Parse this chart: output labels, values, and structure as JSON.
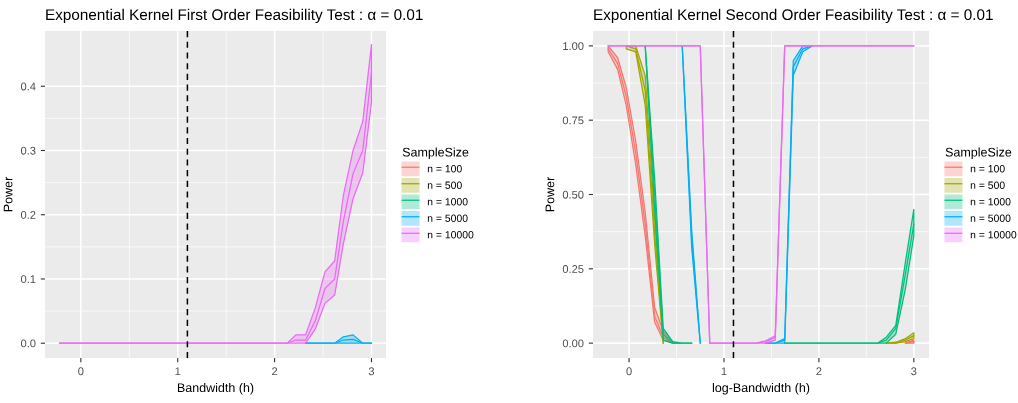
{
  "chart_data": [
    {
      "type": "line",
      "title": "Exponential Kernel First Order Feasibility Test : α = 0.01",
      "xlabel": "Bandwidth (h)",
      "ylabel": "Power",
      "legend_title": "SampleSize",
      "legend": "right",
      "grid": true,
      "x": [
        -0.22,
        -0.12,
        -0.03,
        0.07,
        0.17,
        0.27,
        0.36,
        0.46,
        0.56,
        0.66,
        0.75,
        0.85,
        0.95,
        1.05,
        1.15,
        1.24,
        1.34,
        1.44,
        1.54,
        1.64,
        1.73,
        1.83,
        1.93,
        2.03,
        2.13,
        2.22,
        2.32,
        2.42,
        2.52,
        2.62,
        2.71,
        2.81,
        2.91,
        3.0
      ],
      "xlim": [
        -0.37,
        3.15
      ],
      "xticks": [
        0,
        1,
        2,
        3
      ],
      "ylim": [
        -0.023,
        0.486
      ],
      "yticks": [
        {
          "value": 0,
          "label": "0.0"
        },
        0.1,
        0.2,
        0.3,
        0.4
      ],
      "ref_lines": [
        {
          "axis": "x",
          "value": 1.1,
          "color": "#000000",
          "line_style": "dashed"
        }
      ],
      "series": [
        {
          "name": "n = 100",
          "color": "#f8766d",
          "values": [
            null,
            null,
            null,
            null,
            null,
            null,
            null,
            null,
            null,
            null,
            null,
            null,
            null,
            null,
            null,
            null,
            null,
            null,
            null,
            null,
            null,
            null,
            null,
            null,
            null,
            null,
            null,
            null,
            null,
            null,
            null,
            null,
            null,
            null
          ]
        },
        {
          "name": "n = 500",
          "color": "#a3a500",
          "values": [
            null,
            null,
            null,
            null,
            null,
            null,
            null,
            null,
            null,
            null,
            null,
            null,
            null,
            null,
            null,
            null,
            null,
            null,
            null,
            null,
            null,
            null,
            null,
            null,
            null,
            null,
            null,
            null,
            null,
            null,
            null,
            null,
            null,
            null
          ]
        },
        {
          "name": "n = 1000",
          "color": "#00bf7d",
          "values": [
            null,
            null,
            null,
            null,
            null,
            null,
            null,
            null,
            null,
            null,
            null,
            null,
            null,
            null,
            null,
            null,
            null,
            null,
            null,
            null,
            null,
            null,
            null,
            null,
            null,
            null,
            null,
            null,
            null,
            null,
            null,
            null,
            null,
            null
          ]
        },
        {
          "name": "n = 5000",
          "color": "#00b0f6",
          "values": [
            null,
            null,
            null,
            null,
            null,
            null,
            null,
            null,
            null,
            null,
            null,
            null,
            null,
            null,
            null,
            null,
            null,
            null,
            null,
            null,
            null,
            null,
            null,
            null,
            null,
            null,
            0,
            0,
            0,
            0,
            0.005,
            0.006,
            0,
            0
          ],
          "lower": [
            null,
            null,
            null,
            null,
            null,
            null,
            null,
            null,
            null,
            null,
            null,
            null,
            null,
            null,
            null,
            null,
            null,
            null,
            null,
            null,
            null,
            null,
            null,
            null,
            null,
            null,
            0,
            0,
            0,
            0,
            0,
            0,
            0,
            0
          ],
          "upper": [
            null,
            null,
            null,
            null,
            null,
            null,
            null,
            null,
            null,
            null,
            null,
            null,
            null,
            null,
            null,
            null,
            null,
            null,
            null,
            null,
            null,
            null,
            null,
            null,
            null,
            null,
            0,
            0,
            0,
            0,
            0.01,
            0.013,
            0,
            0
          ]
        },
        {
          "name": "n = 10000",
          "color": "#e76bf3",
          "values": [
            0,
            0,
            0,
            0,
            0,
            0,
            0,
            0,
            0,
            0,
            0,
            0,
            0,
            0,
            0,
            0,
            0,
            0,
            0,
            0,
            0,
            0,
            0,
            0,
            0,
            0.005,
            0.005,
            0.035,
            0.085,
            0.1,
            0.19,
            0.264,
            0.3,
            0.42
          ],
          "lower": [
            0,
            0,
            0,
            0,
            0,
            0,
            0,
            0,
            0,
            0,
            0,
            0,
            0,
            0,
            0,
            0,
            0,
            0,
            0,
            0,
            0,
            0,
            0,
            0,
            0,
            0,
            0,
            0.022,
            0.062,
            0.075,
            0.155,
            0.225,
            0.265,
            0.375
          ],
          "upper": [
            0,
            0,
            0,
            0,
            0,
            0,
            0,
            0,
            0,
            0,
            0,
            0,
            0,
            0,
            0,
            0,
            0,
            0,
            0,
            0,
            0,
            0,
            0,
            0,
            0,
            0.013,
            0.013,
            0.055,
            0.111,
            0.128,
            0.23,
            0.3,
            0.345,
            0.465
          ]
        }
      ]
    },
    {
      "type": "line",
      "title": "Exponential Kernel Second Order Feasibility Test : α = 0.01",
      "xlabel": "log-Bandwidth (h)",
      "ylabel": "Power",
      "legend_title": "SampleSize",
      "legend": "right",
      "grid": true,
      "x": [
        -0.22,
        -0.12,
        -0.03,
        0.07,
        0.17,
        0.27,
        0.36,
        0.46,
        0.56,
        0.66,
        0.75,
        0.85,
        0.95,
        1.05,
        1.15,
        1.24,
        1.34,
        1.44,
        1.54,
        1.64,
        1.73,
        1.83,
        1.93,
        2.03,
        2.13,
        2.22,
        2.32,
        2.42,
        2.52,
        2.62,
        2.71,
        2.81,
        2.91,
        3.0
      ],
      "xlim": [
        -0.38,
        3.16
      ],
      "xticks": [
        0,
        1,
        2,
        3
      ],
      "ylim": [
        -0.05,
        1.05
      ],
      "yticks": [
        {
          "value": 0,
          "label": "0.00"
        },
        {
          "value": 0.25,
          "label": "0.25"
        },
        {
          "value": 0.5,
          "label": "0.50"
        },
        {
          "value": 0.75,
          "label": "0.75"
        },
        {
          "value": 1,
          "label": "1.00"
        }
      ],
      "ref_lines": [
        {
          "axis": "x",
          "value": 1.1,
          "color": "#000000",
          "line_style": "dashed"
        }
      ],
      "series": [
        {
          "name": "n = 100",
          "color": "#f8766d",
          "values": [
            0.99,
            0.94,
            0.83,
            0.64,
            0.4,
            0.09,
            0.02,
            0,
            null,
            null,
            null,
            null,
            null,
            null,
            null,
            null,
            null,
            null,
            null,
            null,
            null,
            null,
            null,
            null,
            null,
            null,
            null,
            null,
            null,
            null,
            null,
            null,
            0,
            0.005
          ],
          "lower": [
            0.98,
            0.92,
            0.8,
            0.6,
            0.36,
            0.07,
            0.01,
            0,
            null,
            null,
            null,
            null,
            null,
            null,
            null,
            null,
            null,
            null,
            null,
            null,
            null,
            null,
            null,
            null,
            null,
            null,
            null,
            null,
            null,
            null,
            null,
            null,
            0,
            0
          ],
          "upper": [
            1,
            0.96,
            0.86,
            0.68,
            0.44,
            0.12,
            0.04,
            0.005,
            null,
            null,
            null,
            null,
            null,
            null,
            null,
            null,
            null,
            null,
            null,
            null,
            null,
            null,
            null,
            null,
            null,
            null,
            null,
            null,
            null,
            null,
            null,
            null,
            0,
            0.01
          ]
        },
        {
          "name": "n = 500",
          "color": "#a3a500",
          "values": [
            null,
            null,
            1,
            0.99,
            0.85,
            0.37,
            0,
            null,
            null,
            null,
            null,
            null,
            null,
            null,
            null,
            null,
            null,
            null,
            null,
            null,
            null,
            null,
            null,
            null,
            null,
            null,
            null,
            null,
            null,
            null,
            0,
            0,
            0.01,
            0.025
          ],
          "lower": [
            null,
            null,
            0.99,
            0.98,
            0.8,
            0.33,
            0,
            null,
            null,
            null,
            null,
            null,
            null,
            null,
            null,
            null,
            null,
            null,
            null,
            null,
            null,
            null,
            null,
            null,
            null,
            null,
            null,
            null,
            null,
            null,
            0,
            0,
            0.005,
            0.015
          ],
          "upper": [
            null,
            null,
            1,
            1,
            0.9,
            0.42,
            0.01,
            null,
            null,
            null,
            null,
            null,
            null,
            null,
            null,
            null,
            null,
            null,
            null,
            null,
            null,
            null,
            null,
            null,
            null,
            null,
            null,
            null,
            null,
            null,
            0,
            0.003,
            0.015,
            0.035
          ]
        },
        {
          "name": "n = 1000",
          "color": "#00bf7d",
          "values": [
            null,
            null,
            null,
            null,
            1,
            0.5,
            0.03,
            0,
            0,
            0,
            null,
            null,
            null,
            null,
            null,
            null,
            null,
            null,
            null,
            0,
            0,
            0,
            0,
            0,
            0,
            0,
            0,
            0,
            0,
            0,
            0.01,
            0.05,
            0.23,
            0.4
          ],
          "lower": [
            null,
            null,
            null,
            null,
            1,
            0.45,
            0.01,
            0,
            0,
            0,
            null,
            null,
            null,
            null,
            null,
            null,
            null,
            null,
            null,
            0,
            0,
            0,
            0,
            0,
            0,
            0,
            0,
            0,
            0,
            0,
            0,
            0.03,
            0.18,
            0.36
          ],
          "upper": [
            null,
            null,
            null,
            null,
            1,
            0.55,
            0.05,
            0.005,
            0,
            0,
            null,
            null,
            null,
            null,
            null,
            null,
            null,
            null,
            null,
            0,
            0,
            0,
            0,
            0,
            0,
            0,
            0,
            0,
            0,
            0,
            0.02,
            0.06,
            0.27,
            0.45
          ]
        },
        {
          "name": "n = 5000",
          "color": "#00b0f6",
          "values": [
            null,
            null,
            null,
            null,
            null,
            null,
            null,
            null,
            1,
            0.35,
            0,
            null,
            null,
            null,
            null,
            null,
            null,
            0,
            0,
            0.01,
            0.93,
            0.99,
            1,
            null,
            null,
            null,
            null,
            null,
            null,
            null,
            null,
            null,
            null,
            null
          ],
          "lower": [
            null,
            null,
            null,
            null,
            null,
            null,
            null,
            null,
            1,
            0.32,
            0,
            null,
            null,
            null,
            null,
            null,
            null,
            0,
            0,
            0,
            0.9,
            0.98,
            1,
            null,
            null,
            null,
            null,
            null,
            null,
            null,
            null,
            null,
            null,
            null
          ],
          "upper": [
            null,
            null,
            null,
            null,
            null,
            null,
            null,
            null,
            1,
            0.38,
            0,
            null,
            null,
            null,
            null,
            null,
            null,
            0,
            0,
            0.015,
            0.95,
            1,
            1,
            null,
            null,
            null,
            null,
            null,
            null,
            null,
            null,
            null,
            null,
            null
          ]
        },
        {
          "name": "n = 10000",
          "color": "#e76bf3",
          "values": [
            1,
            1,
            1,
            1,
            1,
            1,
            1,
            1,
            1,
            1,
            1,
            0,
            0,
            0,
            0,
            0,
            0,
            0.005,
            0.02,
            1,
            1,
            1,
            1,
            1,
            1,
            1,
            1,
            1,
            1,
            1,
            1,
            1,
            1,
            1
          ],
          "lower": [
            1,
            1,
            1,
            1,
            1,
            1,
            1,
            1,
            1,
            1,
            1,
            0,
            0,
            0,
            0,
            0,
            0,
            0,
            0.01,
            1,
            1,
            1,
            1,
            1,
            1,
            1,
            1,
            1,
            1,
            1,
            1,
            1,
            1,
            1
          ],
          "upper": [
            1,
            1,
            1,
            1,
            1,
            1,
            1,
            1,
            1,
            1,
            1,
            0,
            0,
            0,
            0,
            0,
            0,
            0.008,
            0.025,
            1,
            1,
            1,
            1,
            1,
            1,
            1,
            1,
            1,
            1,
            1,
            1,
            1,
            1,
            1
          ]
        }
      ]
    }
  ]
}
